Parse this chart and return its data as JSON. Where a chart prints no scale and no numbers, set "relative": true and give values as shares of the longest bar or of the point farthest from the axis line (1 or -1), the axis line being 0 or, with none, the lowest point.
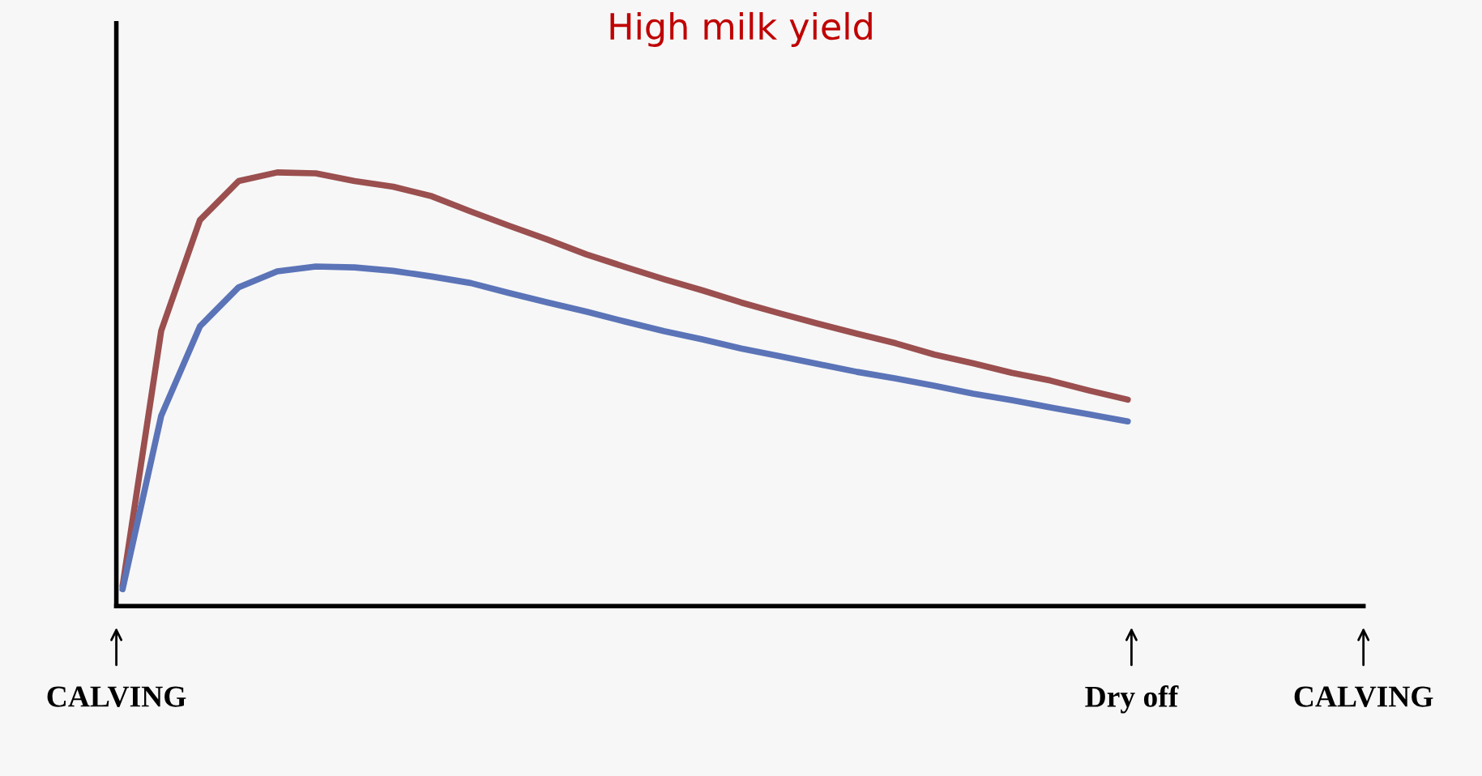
{
  "chart_data": {
    "type": "line",
    "title": "High milk yield",
    "relative": true,
    "categories": [
      null,
      null,
      null,
      null,
      null,
      null,
      null,
      null,
      null,
      null,
      null,
      null,
      null,
      null,
      null,
      null,
      null,
      null,
      null,
      null,
      null,
      null,
      null,
      null,
      null,
      null,
      null
    ],
    "annotations": [
      "CALVING",
      "Dry off",
      "CALVING"
    ],
    "series": [
      {
        "color": "#9b4f4f",
        "values": [
          0.046,
          0.635,
          0.89,
          0.98,
          1.0,
          0.998,
          0.98,
          0.967,
          0.945,
          0.91,
          0.877,
          0.845,
          0.811,
          0.782,
          0.754,
          0.728,
          0.7,
          0.675,
          0.651,
          0.628,
          0.606,
          0.58,
          0.56,
          0.538,
          0.52,
          0.497,
          0.476
        ]
      },
      {
        "color": "#5b74b8",
        "values": [
          0.039,
          0.439,
          0.645,
          0.735,
          0.772,
          0.783,
          0.781,
          0.773,
          0.76,
          0.745,
          0.722,
          0.7,
          0.679,
          0.656,
          0.634,
          0.615,
          0.594,
          0.576,
          0.558,
          0.54,
          0.525,
          0.508,
          0.49,
          0.475,
          0.458,
          0.442,
          0.426
        ]
      }
    ],
    "grid": false,
    "legend": false,
    "marker": "none",
    "line_style": "solid"
  }
}
